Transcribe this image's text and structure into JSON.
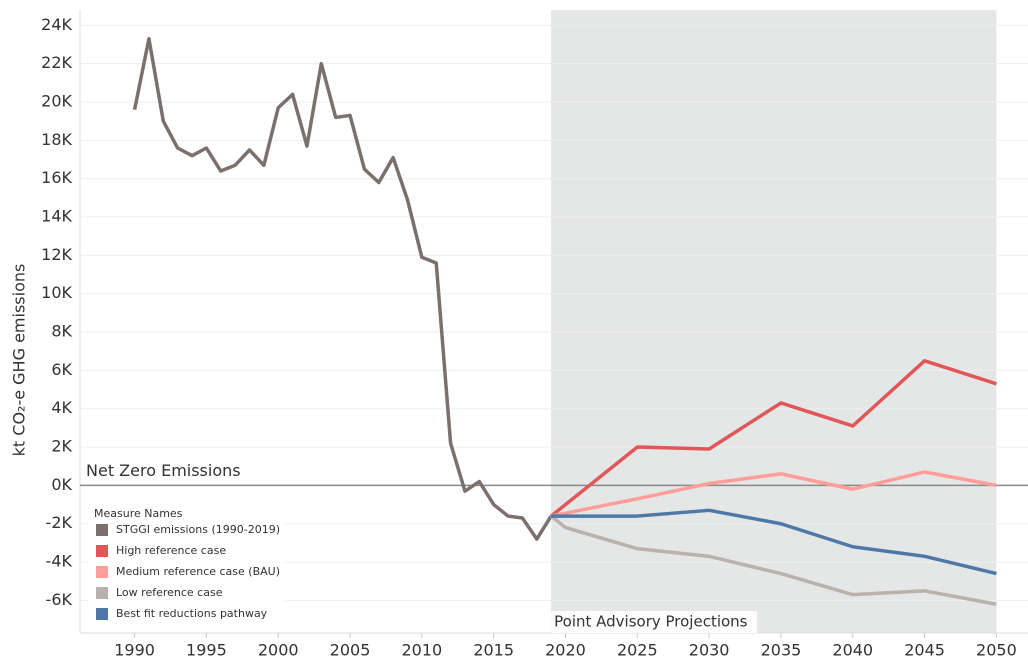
{
  "chart_data": {
    "type": "line",
    "y_label": "kt CO₂-e GHG emissions",
    "legend_title": "Measure Names",
    "xlim": [
      1986.2,
      2052.2
    ],
    "xticks": [
      1990,
      1995,
      2000,
      2005,
      2010,
      2015,
      2020,
      2025,
      2030,
      2035,
      2040,
      2045,
      2050
    ],
    "ylim": [
      -7700,
      24800
    ],
    "yticks": [
      {
        "value": -6000,
        "label": "-6K"
      },
      {
        "value": -4000,
        "label": "-4K"
      },
      {
        "value": -2000,
        "label": "-2K"
      },
      {
        "value": 0,
        "label": "0K"
      },
      {
        "value": 2000,
        "label": "2K"
      },
      {
        "value": 4000,
        "label": "4K"
      },
      {
        "value": 6000,
        "label": "6K"
      },
      {
        "value": 8000,
        "label": "8K"
      },
      {
        "value": 10000,
        "label": "10K"
      },
      {
        "value": 12000,
        "label": "12K"
      },
      {
        "value": 14000,
        "label": "14K"
      },
      {
        "value": 16000,
        "label": "16K"
      },
      {
        "value": 18000,
        "label": "18K"
      },
      {
        "value": 20000,
        "label": "20K"
      },
      {
        "value": 22000,
        "label": "22K"
      },
      {
        "value": 24000,
        "label": "24K"
      }
    ],
    "grid": true,
    "reference_line": {
      "value": 0,
      "label": "Net Zero Emissions"
    },
    "shaded_band": {
      "x": [
        2019,
        2050
      ],
      "label": "Point Advisory Projections"
    },
    "series": [
      {
        "name": "STGGI emissions (1990-2019)",
        "color": "#7b706c",
        "x": [
          1990,
          1991,
          1992,
          1993,
          1994,
          1995,
          1996,
          1997,
          1998,
          1999,
          2000,
          2001,
          2002,
          2003,
          2004,
          2005,
          2006,
          2007,
          2008,
          2009,
          2010,
          2011,
          2012,
          2013,
          2014,
          2015,
          2016,
          2017,
          2018,
          2019
        ],
        "values": [
          19600,
          23300,
          19000,
          17600,
          17200,
          17600,
          16400,
          16700,
          17500,
          16700,
          19700,
          20400,
          17700,
          22000,
          19200,
          19300,
          16500,
          15800,
          17100,
          14900,
          11900,
          11600,
          2200,
          -300,
          200,
          -1000,
          -1600,
          -1700,
          -2800,
          -1600
        ]
      },
      {
        "name": "High reference case",
        "color": "#e05759",
        "x": [
          2019,
          2025,
          2030,
          2035,
          2040,
          2045,
          2050
        ],
        "values": [
          -1600,
          2000,
          1900,
          4300,
          3100,
          6500,
          5300
        ]
      },
      {
        "name": "Medium reference case (BAU)",
        "color": "#ff9d9a",
        "x": [
          2019,
          2025,
          2030,
          2035,
          2040,
          2045,
          2050
        ],
        "values": [
          -1600,
          -700,
          100,
          600,
          -200,
          700,
          0
        ]
      },
      {
        "name": "Low reference case",
        "color": "#bab0ac",
        "x": [
          2019,
          2020,
          2025,
          2030,
          2035,
          2040,
          2045,
          2050
        ],
        "values": [
          -1600,
          -2200,
          -3300,
          -3700,
          -4600,
          -5700,
          -5500,
          -6200
        ]
      },
      {
        "name": "Best fit reductions pathway",
        "color": "#4e79a7",
        "x": [
          2019,
          2025,
          2030,
          2035,
          2040,
          2045,
          2050
        ],
        "values": [
          -1600,
          -1600,
          -1300,
          -2000,
          -3200,
          -3700,
          -4600
        ]
      }
    ]
  }
}
